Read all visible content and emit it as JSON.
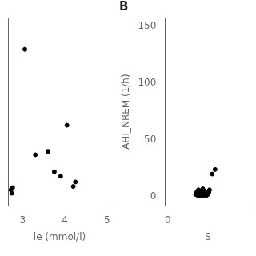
{
  "chart_data": [
    {
      "type": "scatter",
      "xlabel": "le (mmol/l)",
      "x": [
        2.72,
        2.74,
        2.76,
        3.05,
        3.3,
        3.6,
        3.75,
        3.9,
        4.05,
        4.2,
        4.25
      ],
      "values": [
        6,
        3,
        8,
        130,
        37,
        40,
        22,
        18,
        63,
        9,
        13
      ],
      "color": "#000000",
      "xlim": [
        2.65,
        5.1
      ],
      "xticks": [
        3,
        4,
        5
      ],
      "ylim": [
        -8,
        158
      ],
      "tick_labels": "x",
      "grid": false
    },
    {
      "type": "scatter",
      "title": "B",
      "xlabel": "S",
      "ylabel": "AHI_NREM (1/h)",
      "x": [
        0.5,
        0.52,
        0.54,
        0.55,
        0.56,
        0.57,
        0.58,
        0.59,
        0.6,
        0.61,
        0.62,
        0.63,
        0.64,
        0.65,
        0.66,
        0.67,
        0.68,
        0.69,
        0.7,
        0.72,
        0.74,
        0.75,
        0.8,
        0.85
      ],
      "values": [
        2,
        4,
        1,
        6,
        3,
        2,
        5,
        1,
        3,
        4,
        2,
        7,
        1,
        3,
        5,
        2,
        4,
        1,
        3,
        2,
        4,
        6,
        20,
        24
      ],
      "color": "#000000",
      "xlim": [
        -0.05,
        1.5
      ],
      "xticks": [
        0
      ],
      "ylim": [
        -8,
        158
      ],
      "yticks": [
        0,
        50,
        100,
        150
      ],
      "grid": false
    }
  ]
}
